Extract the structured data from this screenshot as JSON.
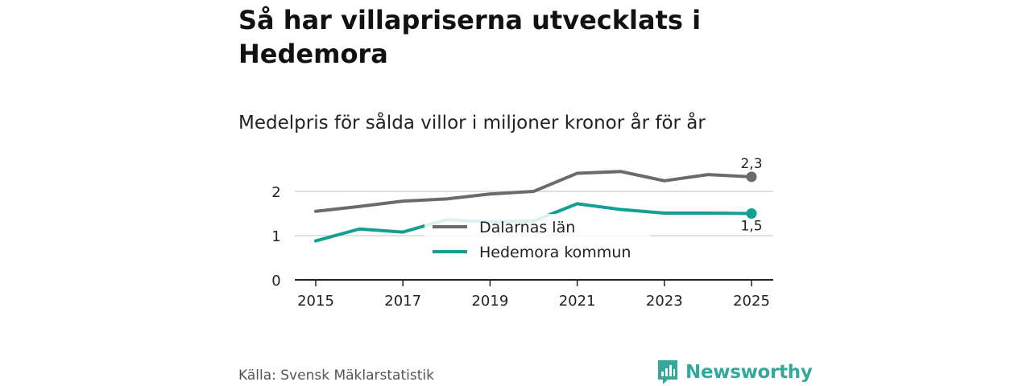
{
  "title": "Så har villapriserna utvecklats i Hedemora",
  "subtitle": "Medelpris för sålda villor i miljoner kronor år för år",
  "source": "Källa: Svensk Mäklarstatistik",
  "brand": {
    "name": "Newsworthy",
    "icon": "newsworthy-logo-icon",
    "color": "#35a89c"
  },
  "chart_data": {
    "type": "line",
    "x": [
      2015,
      2016,
      2017,
      2018,
      2019,
      2020,
      2021,
      2022,
      2023,
      2024,
      2025
    ],
    "series": [
      {
        "name": "Dalarnas län",
        "color": "#6b6b6b",
        "values": [
          1.55,
          1.66,
          1.78,
          1.83,
          1.94,
          2.0,
          2.41,
          2.45,
          2.24,
          2.38,
          2.33
        ],
        "end_label": "2,3"
      },
      {
        "name": "Hedemora kommun",
        "color": "#13a092",
        "values": [
          0.88,
          1.15,
          1.08,
          1.36,
          1.31,
          1.33,
          1.72,
          1.59,
          1.51,
          1.51,
          1.5
        ],
        "end_label": "1,5"
      }
    ],
    "x_ticks": [
      "2015",
      "2017",
      "2019",
      "2021",
      "2023",
      "2025"
    ],
    "x_tick_values": [
      2015,
      2017,
      2019,
      2021,
      2023,
      2025
    ],
    "y_ticks": [
      "0",
      "1",
      "2"
    ],
    "y_tick_values": [
      0,
      1,
      2
    ],
    "ylim": [
      0,
      2.6
    ],
    "xlim": [
      2015,
      2025
    ],
    "grid": true,
    "legend_position": "center"
  }
}
